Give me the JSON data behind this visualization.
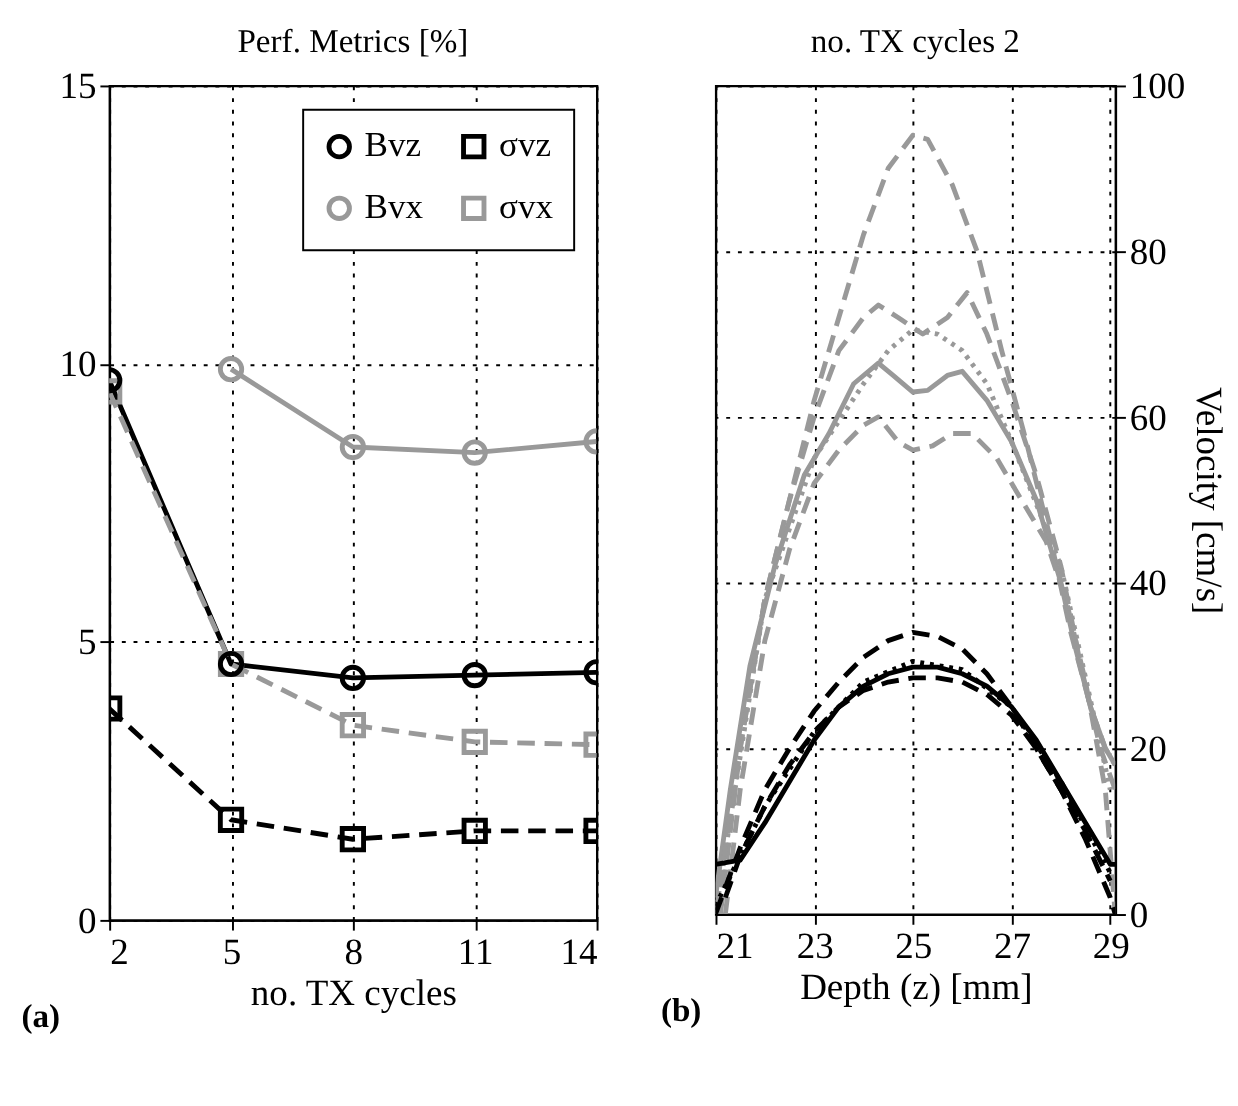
{
  "chart_data": [
    {
      "type": "line",
      "title": "Perf. Metrics [%]",
      "xlabel": "no. TX cycles",
      "x": [
        2,
        5,
        8,
        11,
        14
      ],
      "xlim": [
        2,
        14
      ],
      "xticks": [
        2,
        5,
        8,
        11,
        14
      ],
      "ylim": [
        0,
        15
      ],
      "yticks": [
        0,
        5,
        10,
        15
      ],
      "grid": true,
      "legend": "top right",
      "annotations": [
        "(a)"
      ],
      "series": [
        {
          "name": "Bvz",
          "color": "#000000",
          "marker": "circle",
          "line_style": "solid",
          "values": [
            9.7,
            4.6,
            4.35,
            4.4,
            4.45
          ]
        },
        {
          "name": "Bvx",
          "color": "#999999",
          "marker": "circle",
          "line_style": "solid",
          "values": [
            null,
            9.9,
            8.5,
            8.4,
            8.6
          ]
        },
        {
          "name": "σvz",
          "color": "#000000",
          "marker": "square",
          "line_style": "dashed",
          "values": [
            3.8,
            1.8,
            1.45,
            1.6,
            1.6
          ]
        },
        {
          "name": "σvx",
          "color": "#999999",
          "marker": "square",
          "line_style": "dashed",
          "values": [
            9.5,
            4.6,
            3.5,
            3.2,
            3.15
          ]
        }
      ]
    },
    {
      "type": "line",
      "title": "no. TX cycles 2",
      "xlabel": "Depth (z) [mm]",
      "ylabel": "Velocity [cm/s]",
      "xlim": [
        21,
        29.1
      ],
      "xticks": [
        21,
        23,
        25,
        27,
        29
      ],
      "ylim": [
        0,
        100
      ],
      "yticks": [
        0,
        20,
        40,
        60,
        80,
        100
      ],
      "grid": true,
      "annotations": [
        "(b)"
      ],
      "series": [
        {
          "color": "#999999",
          "line_style": "solid",
          "x": [
            21.0,
            21.3,
            21.7,
            22.2,
            22.8,
            23.3,
            23.8,
            24.3,
            24.6,
            25.0,
            25.3,
            25.7,
            26.0,
            26.5,
            27.0,
            27.5,
            28.0,
            28.3,
            28.6,
            28.9,
            29.1
          ],
          "values": [
            2,
            15,
            30,
            42,
            53,
            58,
            64,
            66.5,
            65,
            63,
            63.2,
            65,
            65.5,
            62,
            57,
            50,
            40,
            32,
            25,
            20,
            18
          ]
        },
        {
          "color": "#999999",
          "line_style": "dashed",
          "x": [
            21.1,
            21.5,
            22.0,
            22.5,
            23.0,
            23.5,
            24.0,
            24.5,
            25.0,
            25.3,
            25.8,
            26.3,
            26.8,
            27.3,
            27.8,
            28.2,
            28.6,
            28.9,
            29.1
          ],
          "values": [
            0,
            20,
            38,
            50,
            62,
            72,
            82,
            90,
            94,
            93.5,
            88,
            80,
            68,
            57,
            45,
            34,
            25,
            20,
            18
          ]
        },
        {
          "color": "#999999",
          "line_style": "dashed",
          "x": [
            21.0,
            21.5,
            22.0,
            22.5,
            23.0,
            23.5,
            24.0,
            24.3,
            24.7,
            25.2,
            25.7,
            26.1,
            26.5,
            27.0,
            27.5,
            28.0,
            28.4,
            28.8,
            29.1
          ],
          "values": [
            0,
            20,
            38,
            50,
            60,
            68,
            72,
            73.5,
            72,
            70,
            72,
            75,
            70,
            62,
            53,
            42,
            30,
            20,
            15
          ]
        },
        {
          "color": "#999999",
          "line_style": "dashed",
          "x": [
            21.2,
            21.5,
            22.0,
            22.5,
            23.0,
            23.5,
            24.0,
            24.3,
            24.7,
            25.0,
            25.4,
            25.8,
            26.2,
            26.7,
            27.2,
            27.7,
            28.1,
            28.5,
            28.9,
            29.1
          ],
          "values": [
            0,
            15,
            33,
            44,
            52,
            56,
            59,
            60,
            57,
            56,
            56.5,
            58,
            58,
            55,
            50,
            45,
            38,
            28,
            15,
            0
          ]
        },
        {
          "color": "#999999",
          "line_style": "dotted",
          "x": [
            21.0,
            22.0,
            23.0,
            24.0,
            24.5,
            25.0,
            25.5,
            26.0,
            26.5,
            27.0,
            28.0,
            29.0
          ],
          "values": [
            0,
            38,
            55,
            64,
            68,
            70.5,
            70,
            68,
            64,
            57,
            42,
            15
          ]
        },
        {
          "color": "#000000",
          "line_style": "solid",
          "x": [
            21.0,
            21.5,
            22.0,
            22.5,
            23.0,
            23.5,
            24.0,
            24.5,
            25.0,
            25.5,
            26.0,
            26.5,
            27.0,
            27.5,
            28.0,
            28.5,
            29.0,
            29.1
          ],
          "values": [
            6,
            6.5,
            11,
            16,
            21,
            25,
            27.5,
            29,
            29.8,
            29.8,
            29,
            27.5,
            25,
            21,
            16,
            11,
            6,
            6
          ]
        },
        {
          "color": "#000000",
          "line_style": "dashed",
          "x": [
            21.0,
            21.5,
            22.0,
            22.5,
            23.0,
            23.5,
            24.0,
            24.5,
            25.0,
            25.5,
            26.0,
            26.5,
            27.0,
            27.5,
            28.0,
            28.5,
            29.0,
            29.1
          ],
          "values": [
            0,
            8,
            15,
            20,
            24.5,
            28,
            31,
            33,
            34,
            33.5,
            32,
            29,
            25,
            20,
            15,
            9,
            2,
            0
          ]
        },
        {
          "color": "#000000",
          "line_style": "dashed",
          "x": [
            21.2,
            21.5,
            22.0,
            22.5,
            23.0,
            23.5,
            24.0,
            24.5,
            25.0,
            25.5,
            26.0,
            26.5,
            27.0,
            27.5,
            28.0,
            28.5,
            29.0
          ],
          "values": [
            2,
            7,
            13,
            18,
            22,
            25,
            27,
            28,
            28.5,
            28.5,
            28,
            26.5,
            24,
            20,
            15,
            10,
            4
          ]
        },
        {
          "color": "#000000",
          "line_style": "dotted",
          "x": [
            21.0,
            22.0,
            23.0,
            24.0,
            25.0,
            26.0,
            27.0,
            28.0,
            29.0
          ],
          "values": [
            1,
            13,
            22,
            28,
            30.5,
            29.5,
            25,
            16,
            5
          ]
        }
      ]
    }
  ]
}
